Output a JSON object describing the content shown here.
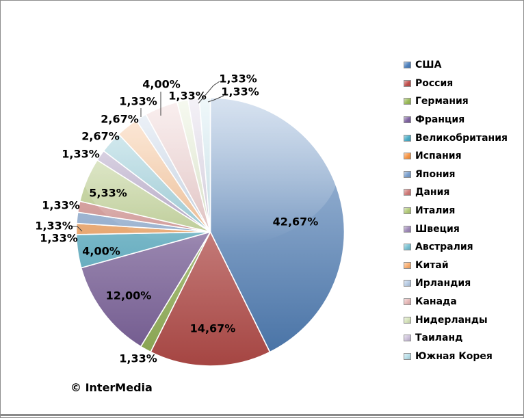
{
  "chart_data": {
    "type": "pie",
    "legend_position": "right",
    "start_angle_deg": 0,
    "direction": "clockwise",
    "categories": [
      "США",
      "Россия",
      "Германия",
      "Франция",
      "Великобритания",
      "Испания",
      "Япония",
      "Дания",
      "Италия",
      "Швеция",
      "Австралия",
      "Китай",
      "Ирландия",
      "Канада",
      "Нидерланды",
      "Таиланд",
      "Южная Корея"
    ],
    "values": [
      42.67,
      14.67,
      1.33,
      12.0,
      4.0,
      1.33,
      1.33,
      1.33,
      5.33,
      1.33,
      2.67,
      2.67,
      1.33,
      4.0,
      1.33,
      1.33,
      1.33
    ],
    "labels": [
      "42,67%",
      "14,67%",
      "1,33%",
      "12,00%",
      "4,00%",
      "1,33%",
      "1,33%",
      "1,33%",
      "5,33%",
      "1,33%",
      "2,67%",
      "2,67%",
      "1,33%",
      "4,00%",
      "1,33%",
      "1,33%",
      "1,33%"
    ],
    "colors": [
      "#4F81BD",
      "#C0504D",
      "#9BBB59",
      "#8064A2",
      "#4BACC6",
      "#F79646",
      "#7BA0CE",
      "#D07C79",
      "#B4CB7A",
      "#A08BB9",
      "#78C0D1",
      "#F9AE70",
      "#B8CCE4",
      "#E6B8B7",
      "#D7E4BC",
      "#CCC0DA",
      "#B7DEE8"
    ]
  },
  "watermark": "© InterMedia"
}
